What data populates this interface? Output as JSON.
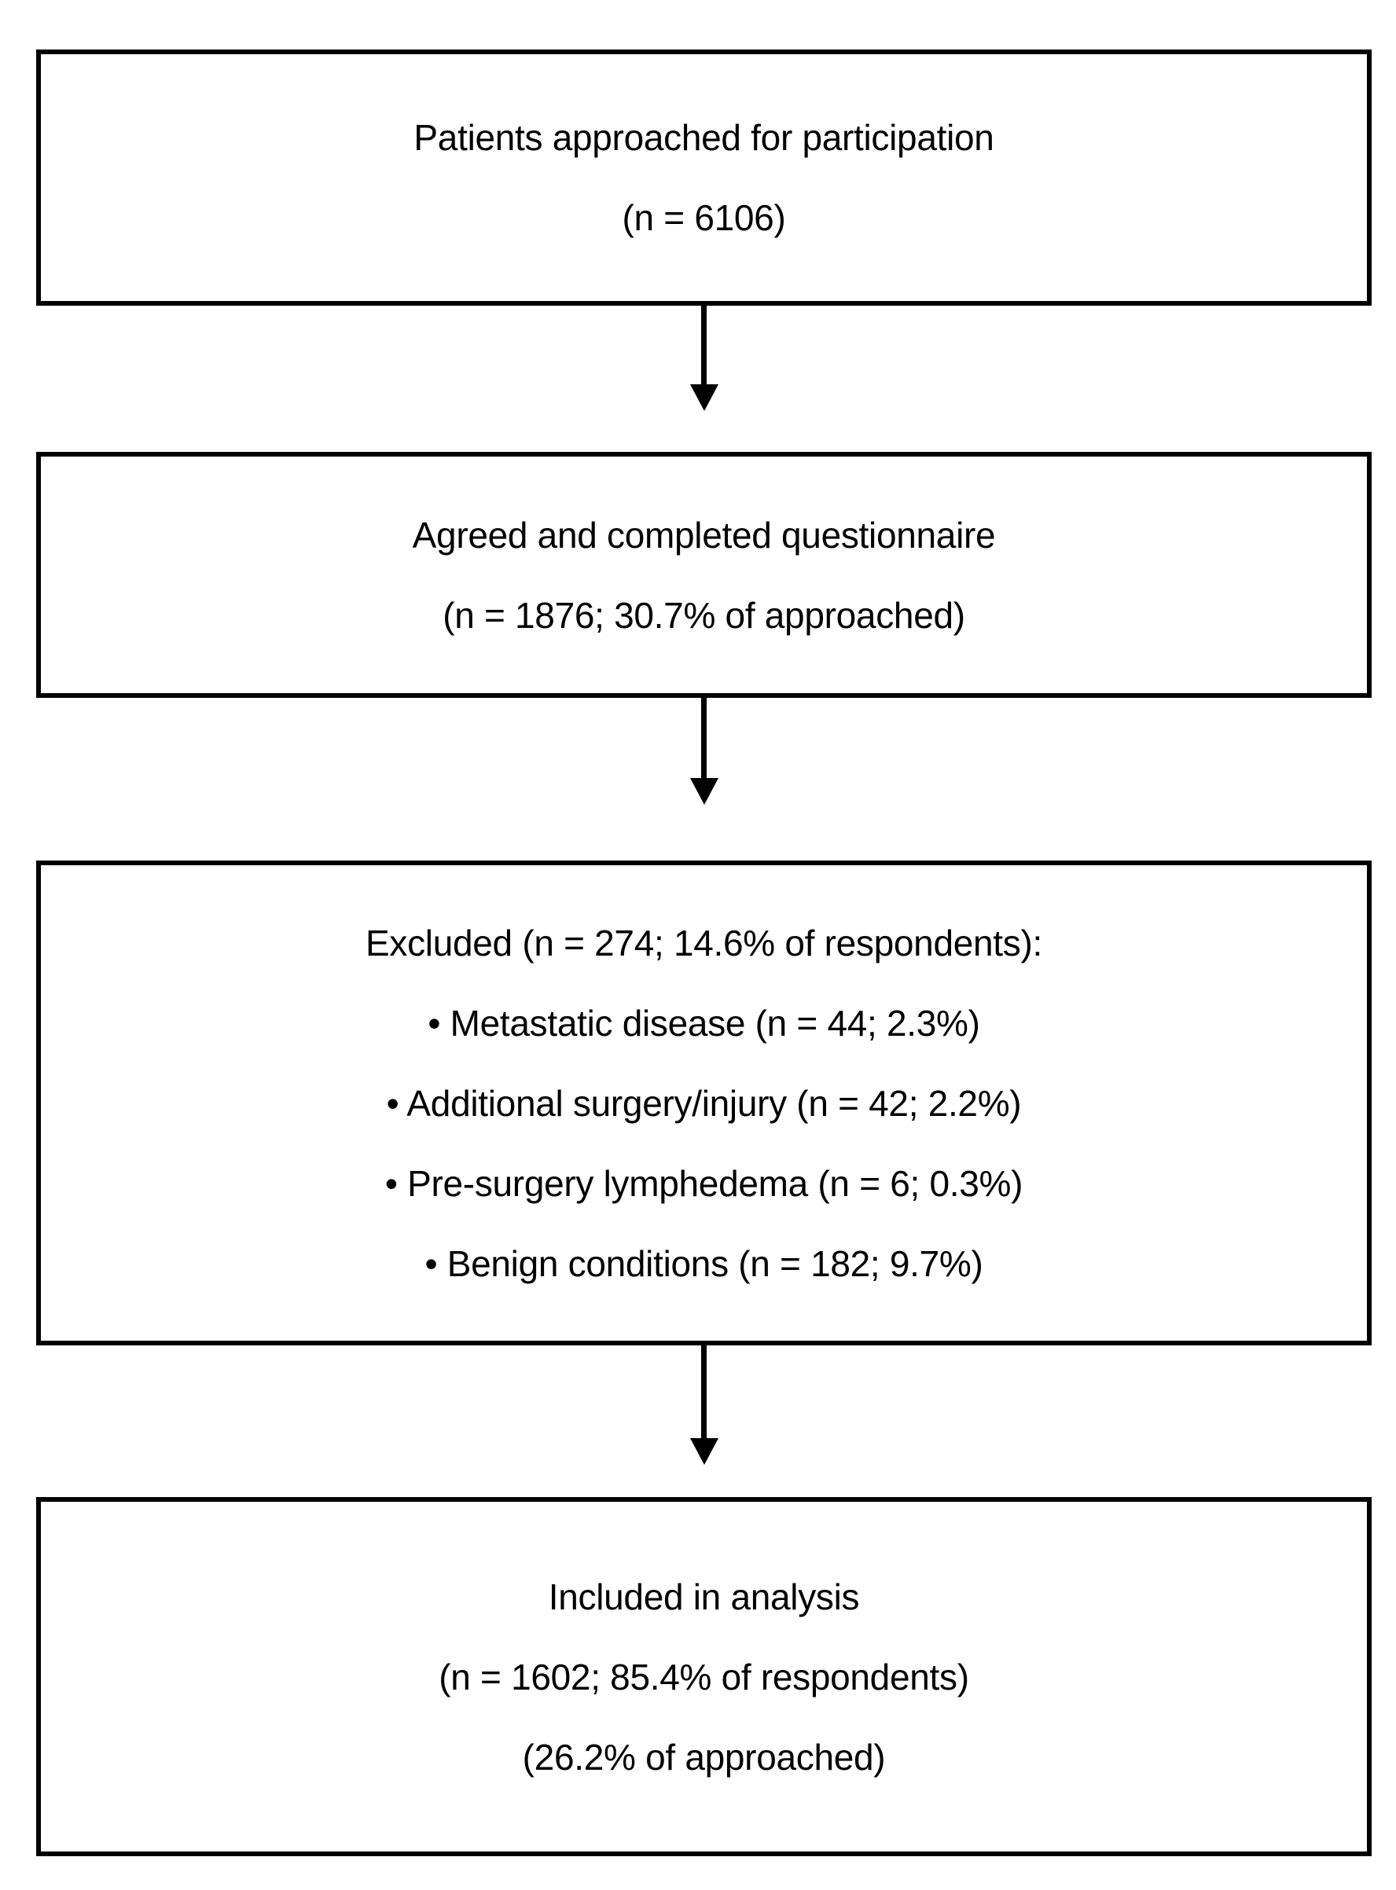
{
  "figure": {
    "background_color": "#ffffff",
    "border_color": "#000000",
    "text_color": "#000000"
  },
  "boxes": [
    {
      "name": "patients-approached",
      "lines": [
        "Patients approached for participation",
        "(n = 6106)"
      ]
    },
    {
      "name": "agreed-completed-questionnaire",
      "lines": [
        "Agreed and completed questionnaire",
        "(n = 1876; 30.7% of approached)"
      ]
    },
    {
      "name": "excluded",
      "lines": [
        "Excluded (n = 274; 14.6% of respondents):",
        "• Metastatic disease (n = 44; 2.3%)",
        "• Additional surgery/injury (n = 42; 2.2%)",
        "• Pre-surgery lymphedema (n = 6; 0.3%)",
        "• Benign conditions (n = 182; 9.7%)"
      ]
    },
    {
      "name": "included-in-analysis",
      "lines": [
        "Included in analysis",
        "(n = 1602; 85.4% of respondents)",
        "(26.2% of approached)"
      ]
    }
  ]
}
